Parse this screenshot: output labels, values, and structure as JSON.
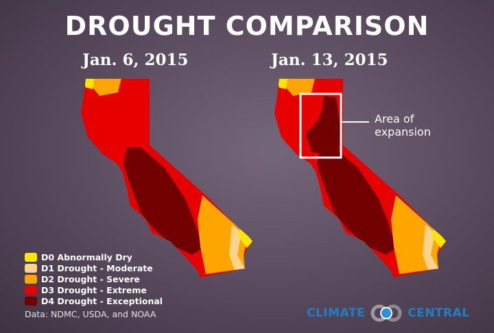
{
  "title": "DROUGHT COMPARISON",
  "maps": [
    {
      "date": "Jan. 6, 2015"
    },
    {
      "date": "Jan. 13, 2015"
    }
  ],
  "annotation": {
    "line1": "Area of",
    "line2": "expansion"
  },
  "legend": [
    {
      "label": "D0 Abnormally Dry",
      "color": "#ffe600"
    },
    {
      "label": "D1 Drought - Moderate",
      "color": "#fcd38c"
    },
    {
      "label": "D2 Drought - Severe",
      "color": "#ffa500"
    },
    {
      "label": "D3 Drought - Extreme",
      "color": "#e60000"
    },
    {
      "label": "D4 Drought - Exceptional",
      "color": "#730000"
    }
  ],
  "source": "Data: NDMC, USDA, and NOAA",
  "logo": {
    "left": "CLIMATE",
    "right": "CENTRAL"
  }
}
